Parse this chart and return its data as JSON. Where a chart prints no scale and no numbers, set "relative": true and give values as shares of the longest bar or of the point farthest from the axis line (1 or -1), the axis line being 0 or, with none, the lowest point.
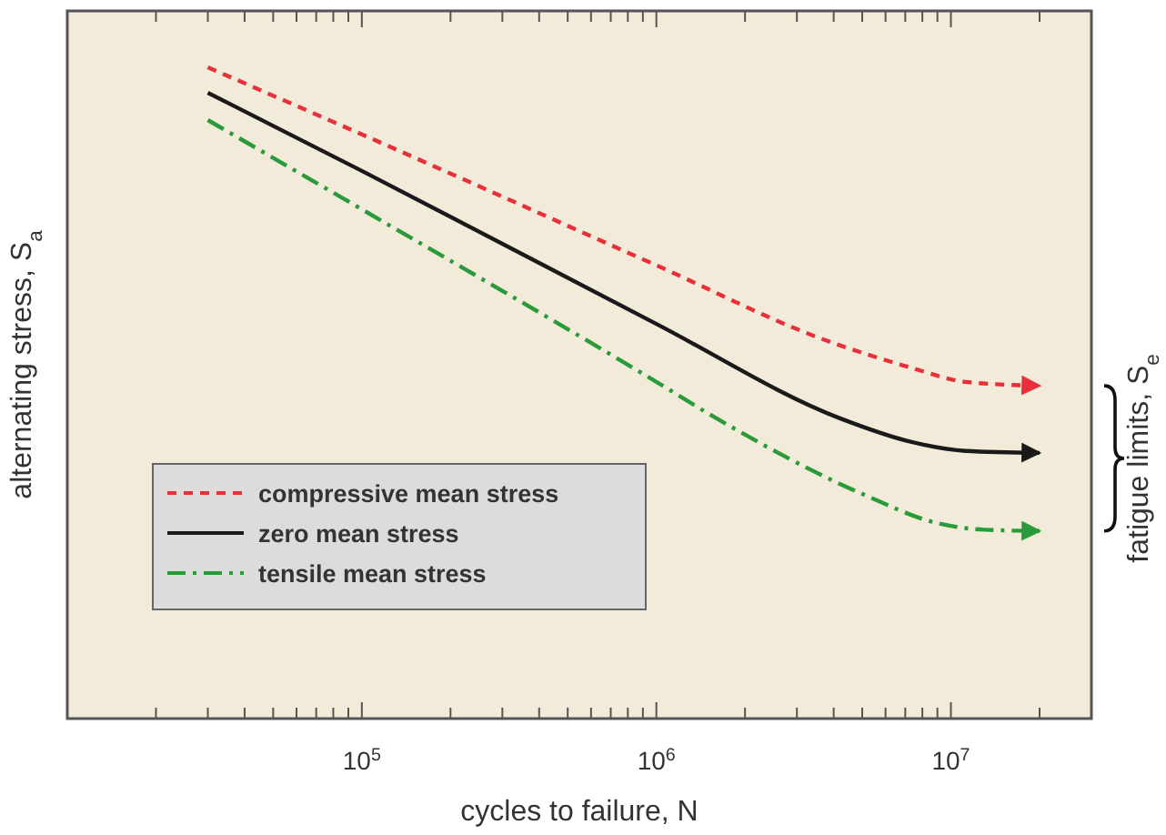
{
  "chart_data": {
    "type": "line",
    "relative": true,
    "log": "x",
    "xlabel": "cycles to failure, N",
    "ylabel": "alternating stress, S$_{a}$",
    "y2label": "fatigue limits, S$_{e}$",
    "xlim": [
      10000,
      30000000
    ],
    "xticks": [
      {
        "value": 20000,
        "label": null
      },
      {
        "value": 30000,
        "label": null
      },
      {
        "value": 40000,
        "label": null
      },
      {
        "value": 50000,
        "label": null
      },
      {
        "value": 60000,
        "label": null
      },
      {
        "value": 70000,
        "label": null
      },
      {
        "value": 80000,
        "label": null
      },
      {
        "value": 90000,
        "label": null
      },
      {
        "value": 100000,
        "label": "10$^{5}$"
      },
      {
        "value": 200000,
        "label": null
      },
      {
        "value": 300000,
        "label": null
      },
      {
        "value": 400000,
        "label": null
      },
      {
        "value": 500000,
        "label": null
      },
      {
        "value": 600000,
        "label": null
      },
      {
        "value": 700000,
        "label": null
      },
      {
        "value": 800000,
        "label": null
      },
      {
        "value": 900000,
        "label": null
      },
      {
        "value": 1000000,
        "label": "10$^{6}$"
      },
      {
        "value": 2000000,
        "label": null
      },
      {
        "value": 3000000,
        "label": null
      },
      {
        "value": 4000000,
        "label": null
      },
      {
        "value": 5000000,
        "label": null
      },
      {
        "value": 6000000,
        "label": null
      },
      {
        "value": 7000000,
        "label": null
      },
      {
        "value": 8000000,
        "label": null
      },
      {
        "value": 9000000,
        "label": null
      },
      {
        "value": 10000000,
        "label": "10$^{7}$"
      },
      {
        "value": 20000000,
        "label": null
      }
    ],
    "legend": "left",
    "grid": false,
    "series": [
      {
        "name": "compressive mean stress",
        "color": "#e8303a",
        "line_style": "dashed",
        "x": [
          30000,
          100000,
          1000000,
          3750000,
          7300000,
          11200000,
          20000000
        ],
        "values": [
          1,
          0.897,
          0.696,
          0.581,
          0.539,
          0.517,
          0.511
        ]
      },
      {
        "name": "zero mean stress",
        "color": "#1a1a1a",
        "line_style": "solid",
        "x": [
          30000,
          100000,
          1000000,
          4200000,
          7300000,
          11200000,
          20000000
        ],
        "values": [
          0.961,
          0.841,
          0.606,
          0.461,
          0.425,
          0.411,
          0.408
        ]
      },
      {
        "name": "tensile mean stress",
        "color": "#2a9a3a",
        "line_style": "dashdot",
        "x": [
          30000,
          100000,
          1000000,
          1600000,
          5000000,
          9000000,
          13000000,
          20000000
        ],
        "values": [
          0.919,
          0.782,
          0.517,
          0.461,
          0.345,
          0.3,
          0.29,
          0.288
        ]
      }
    ]
  }
}
